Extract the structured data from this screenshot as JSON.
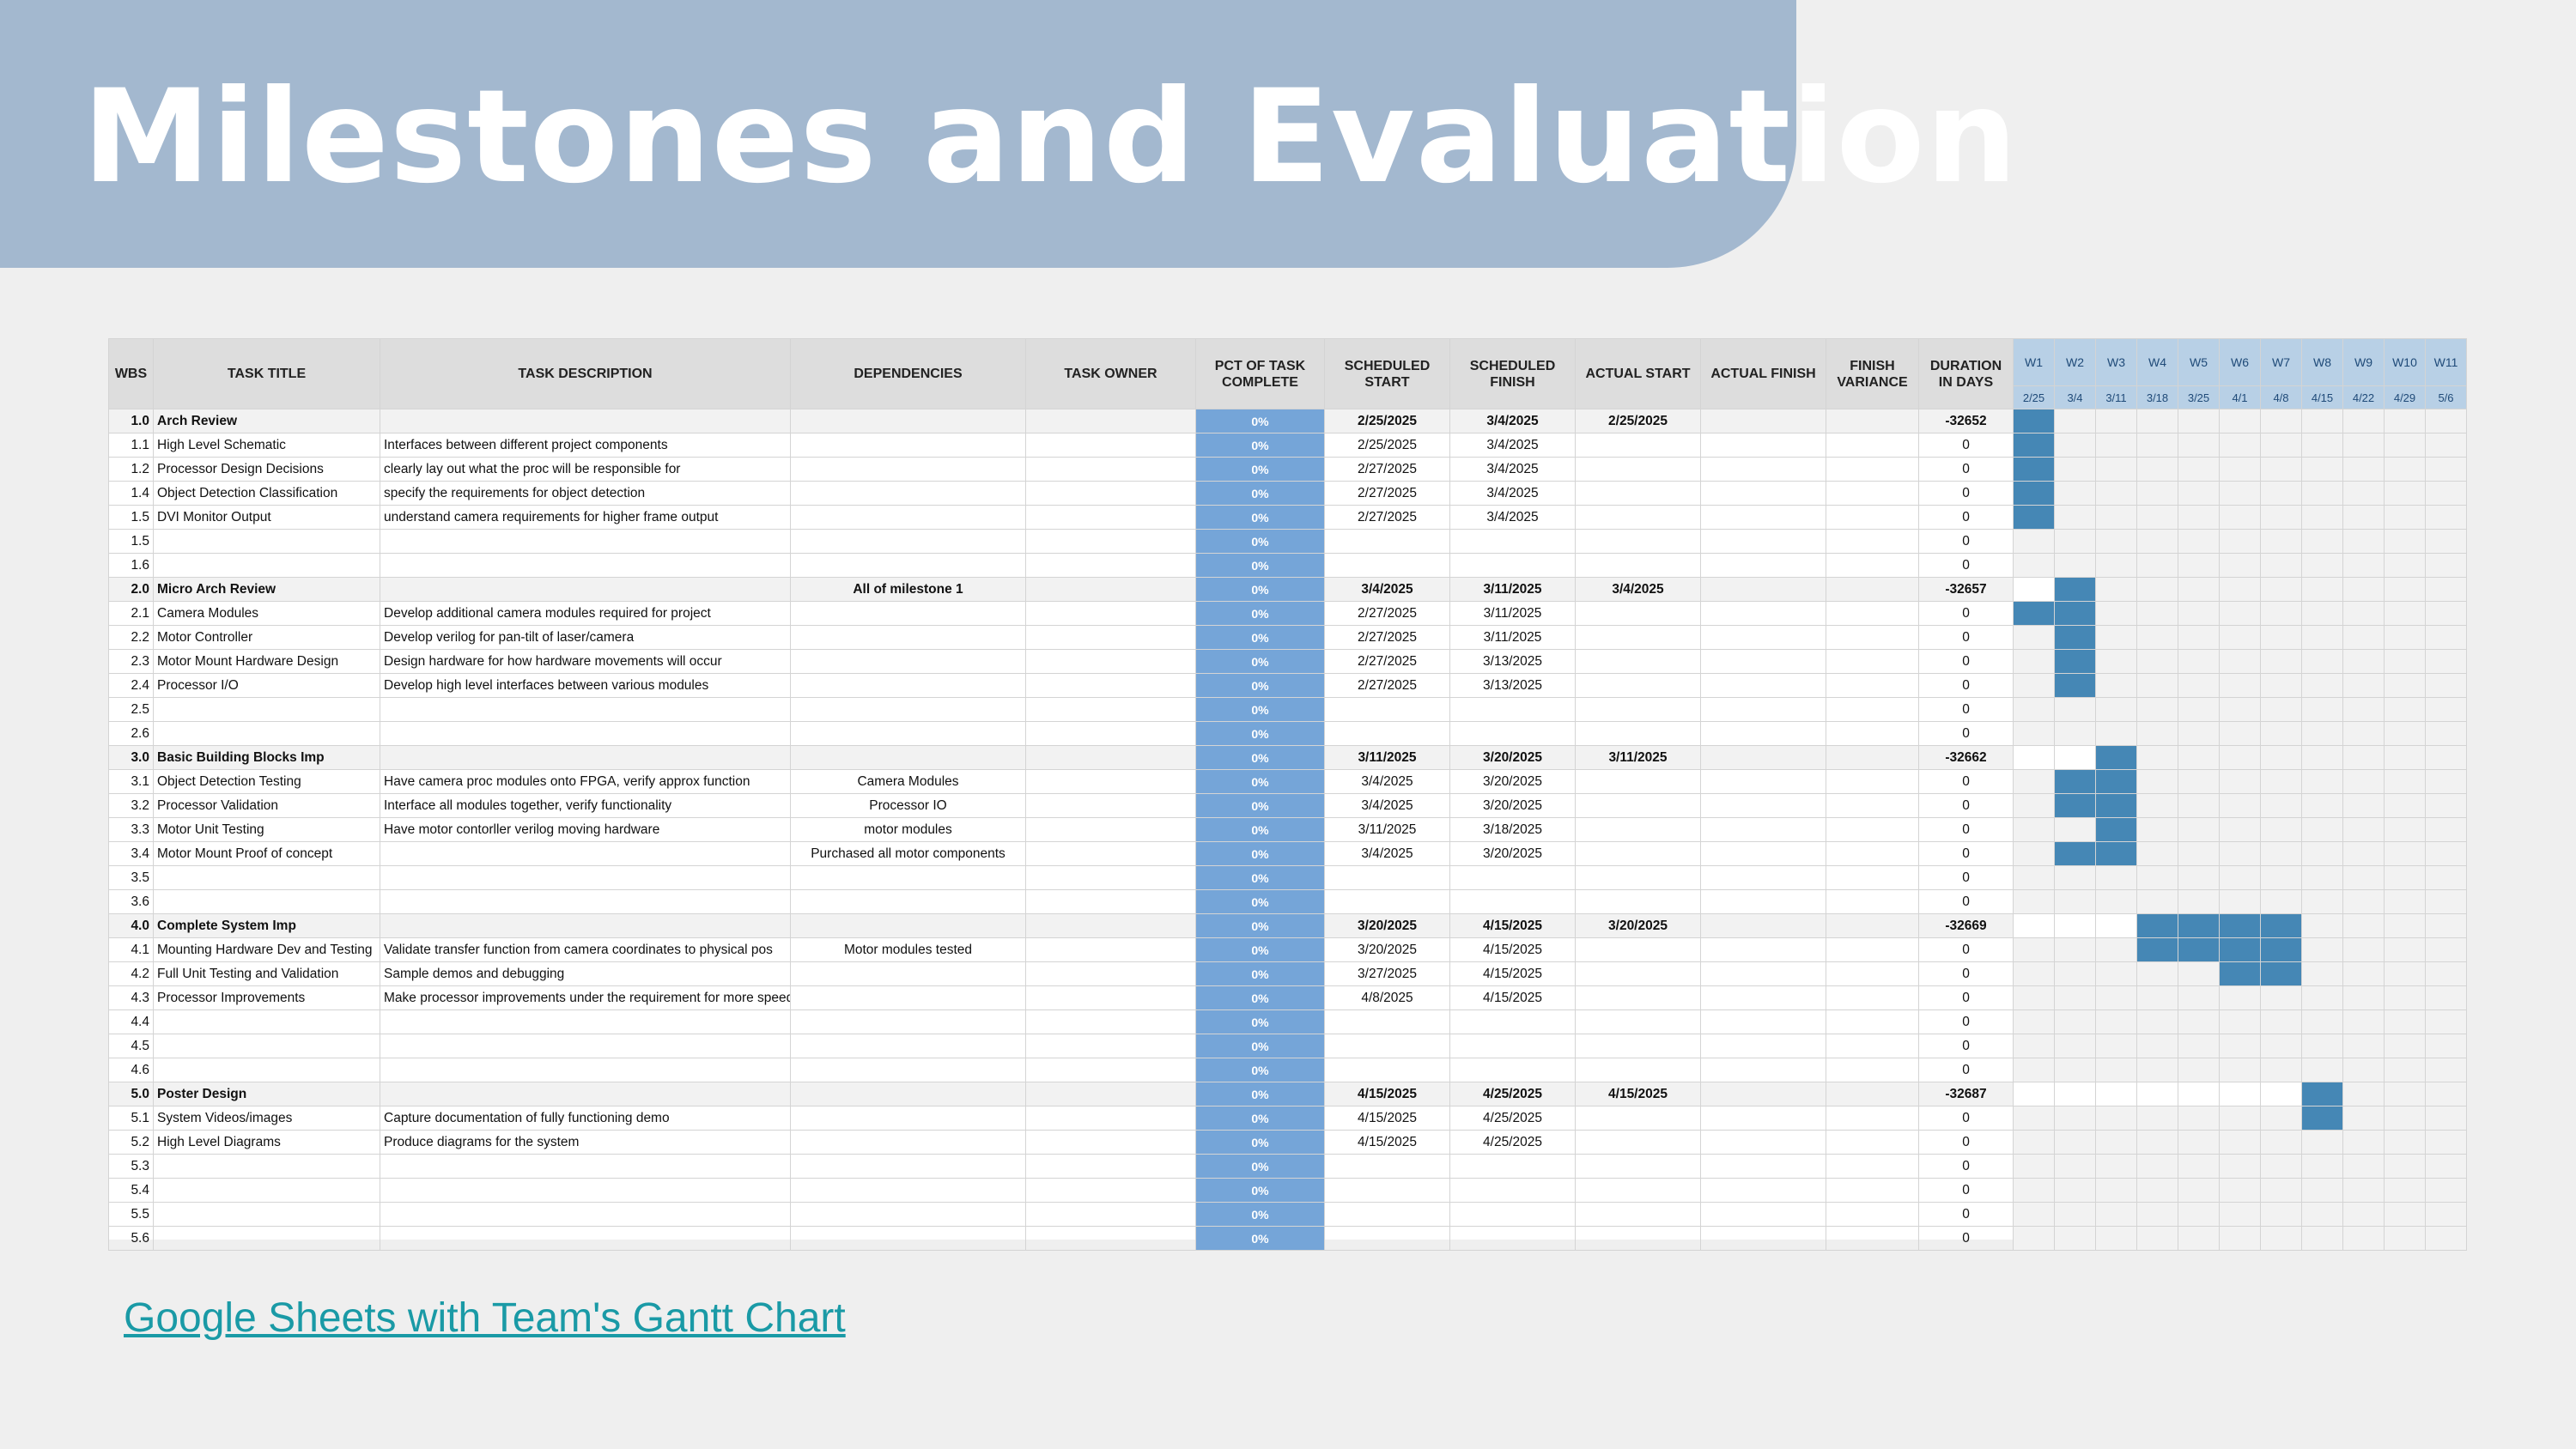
{
  "title": "Milestones and Evaluation",
  "link_text": "Google Sheets with Team's Gantt Chart",
  "colors": {
    "banner": "#a3b8cf",
    "pct_column": "#75a5d8",
    "gantt_bar": "#4587b5",
    "link": "#1a9aa6"
  },
  "headers": {
    "wbs": "WBS",
    "task_title": "TASK TITLE",
    "task_description": "TASK DESCRIPTION",
    "dependencies": "DEPENDENCIES",
    "task_owner": "TASK OWNER",
    "pct_complete": "PCT OF TASK COMPLETE",
    "scheduled_start": "SCHEDULED START",
    "scheduled_finish": "SCHEDULED FINISH",
    "actual_start": "ACTUAL START",
    "actual_finish": "ACTUAL FINISH",
    "finish_variance": "FINISH VARIANCE",
    "duration": "DURATION IN DAYS"
  },
  "weeks": [
    {
      "label": "W1",
      "date": "2/25"
    },
    {
      "label": "W2",
      "date": "3/4"
    },
    {
      "label": "W3",
      "date": "3/11"
    },
    {
      "label": "W4",
      "date": "3/18"
    },
    {
      "label": "W5",
      "date": "3/25"
    },
    {
      "label": "W6",
      "date": "4/1"
    },
    {
      "label": "W7",
      "date": "4/8"
    },
    {
      "label": "W8",
      "date": "4/15"
    },
    {
      "label": "W9",
      "date": "4/22"
    },
    {
      "label": "W10",
      "date": "4/29"
    },
    {
      "label": "W11",
      "date": "5/6"
    }
  ],
  "rows": [
    {
      "wbs": "1.0",
      "title": "Arch Review",
      "desc": "",
      "deps": "",
      "owner": "",
      "pct": "0%",
      "sstart": "2/25/2025",
      "sfinish": "3/4/2025",
      "astart": "2/25/2025",
      "afinish": "",
      "variance": "",
      "duration": "-32652",
      "milestone": true,
      "gantt": [
        1,
        0,
        0,
        0,
        0,
        0,
        0,
        0,
        0,
        0,
        0
      ]
    },
    {
      "wbs": "1.1",
      "title": "High Level Schematic",
      "desc": "Interfaces between different project components",
      "deps": "",
      "owner": "",
      "pct": "0%",
      "sstart": "2/25/2025",
      "sfinish": "3/4/2025",
      "astart": "",
      "afinish": "",
      "variance": "",
      "duration": "0",
      "gantt": [
        1,
        0,
        0,
        0,
        0,
        0,
        0,
        0,
        0,
        0,
        0
      ]
    },
    {
      "wbs": "1.2",
      "title": "Processor Design Decisions",
      "desc": "clearly lay out what the proc will be responsible for",
      "deps": "",
      "owner": "",
      "pct": "0%",
      "sstart": "2/27/2025",
      "sfinish": "3/4/2025",
      "astart": "",
      "afinish": "",
      "variance": "",
      "duration": "0",
      "gantt": [
        1,
        0,
        0,
        0,
        0,
        0,
        0,
        0,
        0,
        0,
        0
      ]
    },
    {
      "wbs": "1.4",
      "title": "Object Detection Classification",
      "desc": "specify the requirements for object detection",
      "deps": "",
      "owner": "",
      "pct": "0%",
      "sstart": "2/27/2025",
      "sfinish": "3/4/2025",
      "astart": "",
      "afinish": "",
      "variance": "",
      "duration": "0",
      "gantt": [
        1,
        0,
        0,
        0,
        0,
        0,
        0,
        0,
        0,
        0,
        0
      ]
    },
    {
      "wbs": "1.5",
      "title": "DVI Monitor Output",
      "desc": "understand camera requirements for higher frame output",
      "deps": "",
      "owner": "",
      "pct": "0%",
      "sstart": "2/27/2025",
      "sfinish": "3/4/2025",
      "astart": "",
      "afinish": "",
      "variance": "",
      "duration": "0",
      "gantt": [
        1,
        0,
        0,
        0,
        0,
        0,
        0,
        0,
        0,
        0,
        0
      ]
    },
    {
      "wbs": "1.5",
      "title": "",
      "desc": "",
      "deps": "",
      "owner": "",
      "pct": "0%",
      "sstart": "",
      "sfinish": "",
      "astart": "",
      "afinish": "",
      "variance": "",
      "duration": "0",
      "gantt": [
        0,
        0,
        0,
        0,
        0,
        0,
        0,
        0,
        0,
        0,
        0
      ]
    },
    {
      "wbs": "1.6",
      "title": "",
      "desc": "",
      "deps": "",
      "owner": "",
      "pct": "0%",
      "sstart": "",
      "sfinish": "",
      "astart": "",
      "afinish": "",
      "variance": "",
      "duration": "0",
      "gantt": [
        0,
        0,
        0,
        0,
        0,
        0,
        0,
        0,
        0,
        0,
        0
      ]
    },
    {
      "wbs": "2.0",
      "title": "Micro Arch Review",
      "desc": "",
      "deps": "All of milestone 1",
      "owner": "",
      "pct": "0%",
      "sstart": "3/4/2025",
      "sfinish": "3/11/2025",
      "astart": "3/4/2025",
      "afinish": "",
      "variance": "",
      "duration": "-32657",
      "milestone": true,
      "gantt": [
        2,
        1,
        0,
        0,
        0,
        0,
        0,
        0,
        0,
        0,
        0
      ]
    },
    {
      "wbs": "2.1",
      "title": "Camera Modules",
      "desc": "Develop additional camera modules required for project",
      "deps": "",
      "owner": "",
      "pct": "0%",
      "sstart": "2/27/2025",
      "sfinish": "3/11/2025",
      "astart": "",
      "afinish": "",
      "variance": "",
      "duration": "0",
      "gantt": [
        1,
        1,
        0,
        0,
        0,
        0,
        0,
        0,
        0,
        0,
        0
      ]
    },
    {
      "wbs": "2.2",
      "title": "Motor Controller",
      "desc": "Develop verilog for pan-tilt of laser/camera",
      "deps": "",
      "owner": "",
      "pct": "0%",
      "sstart": "2/27/2025",
      "sfinish": "3/11/2025",
      "astart": "",
      "afinish": "",
      "variance": "",
      "duration": "0",
      "gantt": [
        0,
        1,
        0,
        0,
        0,
        0,
        0,
        0,
        0,
        0,
        0
      ]
    },
    {
      "wbs": "2.3",
      "title": "Motor Mount Hardware Design",
      "desc": "Design hardware for how hardware movements will occur",
      "deps": "",
      "owner": "",
      "pct": "0%",
      "sstart": "2/27/2025",
      "sfinish": "3/13/2025",
      "astart": "",
      "afinish": "",
      "variance": "",
      "duration": "0",
      "gantt": [
        0,
        1,
        0,
        0,
        0,
        0,
        0,
        0,
        0,
        0,
        0
      ]
    },
    {
      "wbs": "2.4",
      "title": "Processor I/O",
      "desc": "Develop high level interfaces between various modules",
      "deps": "",
      "owner": "",
      "pct": "0%",
      "sstart": "2/27/2025",
      "sfinish": "3/13/2025",
      "astart": "",
      "afinish": "",
      "variance": "",
      "duration": "0",
      "gantt": [
        0,
        1,
        0,
        0,
        0,
        0,
        0,
        0,
        0,
        0,
        0
      ]
    },
    {
      "wbs": "2.5",
      "title": "",
      "desc": "",
      "deps": "",
      "owner": "",
      "pct": "0%",
      "sstart": "",
      "sfinish": "",
      "astart": "",
      "afinish": "",
      "variance": "",
      "duration": "0",
      "gantt": [
        0,
        0,
        0,
        0,
        0,
        0,
        0,
        0,
        0,
        0,
        0
      ]
    },
    {
      "wbs": "2.6",
      "title": "",
      "desc": "",
      "deps": "",
      "owner": "",
      "pct": "0%",
      "sstart": "",
      "sfinish": "",
      "astart": "",
      "afinish": "",
      "variance": "",
      "duration": "0",
      "gantt": [
        0,
        0,
        0,
        0,
        0,
        0,
        0,
        0,
        0,
        0,
        0
      ]
    },
    {
      "wbs": "3.0",
      "title": "Basic Building Blocks Imp",
      "desc": "",
      "deps": "",
      "owner": "",
      "pct": "0%",
      "sstart": "3/11/2025",
      "sfinish": "3/20/2025",
      "astart": "3/11/2025",
      "afinish": "",
      "variance": "",
      "duration": "-32662",
      "milestone": true,
      "gantt": [
        2,
        2,
        1,
        0,
        0,
        0,
        0,
        0,
        0,
        0,
        0
      ]
    },
    {
      "wbs": "3.1",
      "title": "Object Detection Testing",
      "desc": "Have camera proc modules onto FPGA, verify approx function",
      "deps": "Camera Modules",
      "owner": "",
      "pct": "0%",
      "sstart": "3/4/2025",
      "sfinish": "3/20/2025",
      "astart": "",
      "afinish": "",
      "variance": "",
      "duration": "0",
      "gantt": [
        0,
        1,
        1,
        0,
        0,
        0,
        0,
        0,
        0,
        0,
        0
      ]
    },
    {
      "wbs": "3.2",
      "title": "Processor Validation",
      "desc": "Interface all modules together, verify functionality",
      "deps": "Processor IO",
      "owner": "",
      "pct": "0%",
      "sstart": "3/4/2025",
      "sfinish": "3/20/2025",
      "astart": "",
      "afinish": "",
      "variance": "",
      "duration": "0",
      "gantt": [
        0,
        1,
        1,
        0,
        0,
        0,
        0,
        0,
        0,
        0,
        0
      ]
    },
    {
      "wbs": "3.3",
      "title": "Motor Unit Testing",
      "desc": "Have motor contorller verilog moving hardware",
      "deps": "motor modules",
      "owner": "",
      "pct": "0%",
      "sstart": "3/11/2025",
      "sfinish": "3/18/2025",
      "astart": "",
      "afinish": "",
      "variance": "",
      "duration": "0",
      "gantt": [
        0,
        0,
        1,
        0,
        0,
        0,
        0,
        0,
        0,
        0,
        0
      ]
    },
    {
      "wbs": "3.4",
      "title": "Motor Mount Proof of concept",
      "desc": "",
      "deps": "Purchased all motor components",
      "owner": "",
      "pct": "0%",
      "sstart": "3/4/2025",
      "sfinish": "3/20/2025",
      "astart": "",
      "afinish": "",
      "variance": "",
      "duration": "0",
      "gantt": [
        0,
        1,
        1,
        0,
        0,
        0,
        0,
        0,
        0,
        0,
        0
      ]
    },
    {
      "wbs": "3.5",
      "title": "",
      "desc": "",
      "deps": "",
      "owner": "",
      "pct": "0%",
      "sstart": "",
      "sfinish": "",
      "astart": "",
      "afinish": "",
      "variance": "",
      "duration": "0",
      "gantt": [
        0,
        0,
        0,
        0,
        0,
        0,
        0,
        0,
        0,
        0,
        0
      ]
    },
    {
      "wbs": "3.6",
      "title": "",
      "desc": "",
      "deps": "",
      "owner": "",
      "pct": "0%",
      "sstart": "",
      "sfinish": "",
      "astart": "",
      "afinish": "",
      "variance": "",
      "duration": "0",
      "gantt": [
        0,
        0,
        0,
        0,
        0,
        0,
        0,
        0,
        0,
        0,
        0
      ]
    },
    {
      "wbs": "4.0",
      "title": "Complete System Imp",
      "desc": "",
      "deps": "",
      "owner": "",
      "pct": "0%",
      "sstart": "3/20/2025",
      "sfinish": "4/15/2025",
      "astart": "3/20/2025",
      "afinish": "",
      "variance": "",
      "duration": "-32669",
      "milestone": true,
      "gantt": [
        2,
        2,
        2,
        1,
        1,
        1,
        1,
        0,
        0,
        0,
        0
      ]
    },
    {
      "wbs": "4.1",
      "title": "Mounting Hardware Dev and Testing",
      "desc": "Validate transfer function from camera coordinates to physical pos",
      "deps": "Motor modules tested",
      "owner": "",
      "pct": "0%",
      "sstart": "3/20/2025",
      "sfinish": "4/15/2025",
      "astart": "",
      "afinish": "",
      "variance": "",
      "duration": "0",
      "gantt": [
        0,
        0,
        0,
        1,
        1,
        1,
        1,
        0,
        0,
        0,
        0
      ]
    },
    {
      "wbs": "4.2",
      "title": "Full Unit Testing and Validation",
      "desc": "Sample demos and debugging",
      "deps": "",
      "owner": "",
      "pct": "0%",
      "sstart": "3/27/2025",
      "sfinish": "4/15/2025",
      "astart": "",
      "afinish": "",
      "variance": "",
      "duration": "0",
      "gantt": [
        0,
        0,
        0,
        0,
        0,
        1,
        1,
        0,
        0,
        0,
        0
      ]
    },
    {
      "wbs": "4.3",
      "title": "Processor Improvements",
      "desc": "Make processor improvements under the requirement for more speed, better accuracy, etc",
      "deps": "",
      "owner": "",
      "pct": "0%",
      "sstart": "4/8/2025",
      "sfinish": "4/15/2025",
      "astart": "",
      "afinish": "",
      "variance": "",
      "duration": "0",
      "gantt": [
        0,
        0,
        0,
        0,
        0,
        0,
        0,
        0,
        0,
        0,
        0
      ]
    },
    {
      "wbs": "4.4",
      "title": "",
      "desc": "",
      "deps": "",
      "owner": "",
      "pct": "0%",
      "sstart": "",
      "sfinish": "",
      "astart": "",
      "afinish": "",
      "variance": "",
      "duration": "0",
      "gantt": [
        0,
        0,
        0,
        0,
        0,
        0,
        0,
        0,
        0,
        0,
        0
      ]
    },
    {
      "wbs": "4.5",
      "title": "",
      "desc": "",
      "deps": "",
      "owner": "",
      "pct": "0%",
      "sstart": "",
      "sfinish": "",
      "astart": "",
      "afinish": "",
      "variance": "",
      "duration": "0",
      "gantt": [
        0,
        0,
        0,
        0,
        0,
        0,
        0,
        0,
        0,
        0,
        0
      ]
    },
    {
      "wbs": "4.6",
      "title": "",
      "desc": "",
      "deps": "",
      "owner": "",
      "pct": "0%",
      "sstart": "",
      "sfinish": "",
      "astart": "",
      "afinish": "",
      "variance": "",
      "duration": "0",
      "gantt": [
        0,
        0,
        0,
        0,
        0,
        0,
        0,
        0,
        0,
        0,
        0
      ]
    },
    {
      "wbs": "5.0",
      "title": "Poster Design",
      "desc": "",
      "deps": "",
      "owner": "",
      "pct": "0%",
      "sstart": "4/15/2025",
      "sfinish": "4/25/2025",
      "astart": "4/15/2025",
      "afinish": "",
      "variance": "",
      "duration": "-32687",
      "milestone": true,
      "gantt": [
        2,
        2,
        2,
        2,
        2,
        2,
        2,
        1,
        0,
        0,
        0
      ]
    },
    {
      "wbs": "5.1",
      "title": "System Videos/images",
      "desc": "Capture documentation of fully functioning demo",
      "deps": "",
      "owner": "",
      "pct": "0%",
      "sstart": "4/15/2025",
      "sfinish": "4/25/2025",
      "astart": "",
      "afinish": "",
      "variance": "",
      "duration": "0",
      "gantt": [
        0,
        0,
        0,
        0,
        0,
        0,
        0,
        1,
        0,
        0,
        0
      ]
    },
    {
      "wbs": "5.2",
      "title": "High Level Diagrams",
      "desc": "Produce diagrams for the system",
      "deps": "",
      "owner": "",
      "pct": "0%",
      "sstart": "4/15/2025",
      "sfinish": "4/25/2025",
      "astart": "",
      "afinish": "",
      "variance": "",
      "duration": "0",
      "gantt": [
        0,
        0,
        0,
        0,
        0,
        0,
        0,
        0,
        0,
        0,
        0
      ]
    },
    {
      "wbs": "5.3",
      "title": "",
      "desc": "",
      "deps": "",
      "owner": "",
      "pct": "0%",
      "sstart": "",
      "sfinish": "",
      "astart": "",
      "afinish": "",
      "variance": "",
      "duration": "0",
      "gantt": [
        0,
        0,
        0,
        0,
        0,
        0,
        0,
        0,
        0,
        0,
        0
      ]
    },
    {
      "wbs": "5.4",
      "title": "",
      "desc": "",
      "deps": "",
      "owner": "",
      "pct": "0%",
      "sstart": "",
      "sfinish": "",
      "astart": "",
      "afinish": "",
      "variance": "",
      "duration": "0",
      "gantt": [
        0,
        0,
        0,
        0,
        0,
        0,
        0,
        0,
        0,
        0,
        0
      ]
    },
    {
      "wbs": "5.5",
      "title": "",
      "desc": "",
      "deps": "",
      "owner": "",
      "pct": "0%",
      "sstart": "",
      "sfinish": "",
      "astart": "",
      "afinish": "",
      "variance": "",
      "duration": "0",
      "gantt": [
        0,
        0,
        0,
        0,
        0,
        0,
        0,
        0,
        0,
        0,
        0
      ]
    },
    {
      "wbs": "5.6",
      "title": "",
      "desc": "",
      "deps": "",
      "owner": "",
      "pct": "0%",
      "sstart": "",
      "sfinish": "",
      "astart": "",
      "afinish": "",
      "variance": "",
      "duration": "0",
      "gantt": [
        0,
        0,
        0,
        0,
        0,
        0,
        0,
        0,
        0,
        0,
        0
      ]
    }
  ]
}
